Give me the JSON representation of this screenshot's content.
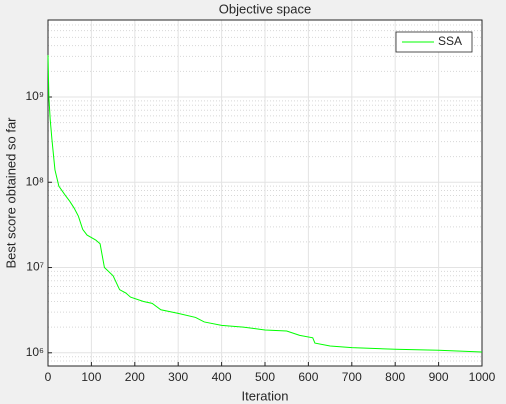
{
  "chart_data": {
    "type": "line",
    "title": "Objective space",
    "x_label": "Iteration",
    "y_label": "Best score obtained so far",
    "x": [
      0,
      2,
      5,
      9,
      16,
      25,
      40,
      50,
      60,
      70,
      80,
      90,
      110,
      120,
      130,
      150,
      165,
      180,
      190,
      220,
      240,
      260,
      300,
      340,
      360,
      400,
      450,
      500,
      550,
      580,
      610,
      615,
      650,
      700,
      800,
      900,
      1000
    ],
    "series": [
      {
        "name": "SSA",
        "color": "#00ff00",
        "values": [
          3100000000,
          1000000000,
          550000000,
          320000000,
          140000000,
          90000000,
          70000000,
          60000000,
          50000000,
          40000000,
          28000000,
          24000000,
          21000000,
          19000000,
          10000000,
          8000000,
          5500000,
          5000000,
          4500000,
          4000000,
          3800000,
          3200000,
          2900000,
          2600000,
          2300000,
          2100000,
          2000000,
          1850000,
          1800000,
          1600000,
          1500000,
          1300000,
          1200000,
          1150000,
          1100000,
          1070000,
          1020000
        ]
      }
    ],
    "xlim": [
      0,
      1000
    ],
    "xticks": [
      0,
      100,
      200,
      300,
      400,
      500,
      600,
      700,
      800,
      900,
      1000
    ],
    "ylim": [
      700000,
      8000000000
    ],
    "y_log": true,
    "yticks": [
      {
        "value": 1000000,
        "label": "10⁶"
      },
      {
        "value": 10000000,
        "label": "10⁷"
      },
      {
        "value": 100000000,
        "label": "10⁸"
      },
      {
        "value": 1000000000,
        "label": "10⁹"
      }
    ],
    "grid": true,
    "minor_grid": true,
    "legend": "northeast"
  }
}
